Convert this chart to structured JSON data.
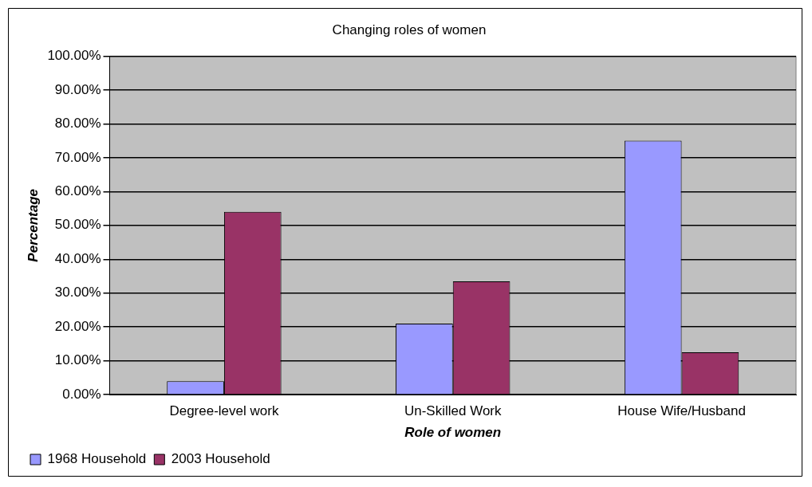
{
  "chart_data": {
    "type": "bar",
    "title": "Changing roles of women",
    "xlabel": "Role of women",
    "ylabel": "Percentage",
    "categories": [
      "Degree-level work",
      "Un-Skilled Work",
      "House Wife/Husband"
    ],
    "series": [
      {
        "name": "1968 Household",
        "color": "#9999ff",
        "values": [
          4,
          21,
          75
        ]
      },
      {
        "name": "2003 Household",
        "color": "#993366",
        "values": [
          54,
          33.5,
          12.5
        ]
      }
    ],
    "ylim": [
      0,
      100
    ],
    "yticks": [
      {
        "value": 0,
        "label": "0.00%"
      },
      {
        "value": 10,
        "label": "10.00%"
      },
      {
        "value": 20,
        "label": "20.00%"
      },
      {
        "value": 30,
        "label": "30.00%"
      },
      {
        "value": 40,
        "label": "40.00%"
      },
      {
        "value": 50,
        "label": "50.00%"
      },
      {
        "value": 60,
        "label": "60.00%"
      },
      {
        "value": 70,
        "label": "70.00%"
      },
      {
        "value": 80,
        "label": "80.00%"
      },
      {
        "value": 90,
        "label": "90.00%"
      },
      {
        "value": 100,
        "label": "100.00%"
      }
    ],
    "grid": "y",
    "legend": "bottom left"
  }
}
